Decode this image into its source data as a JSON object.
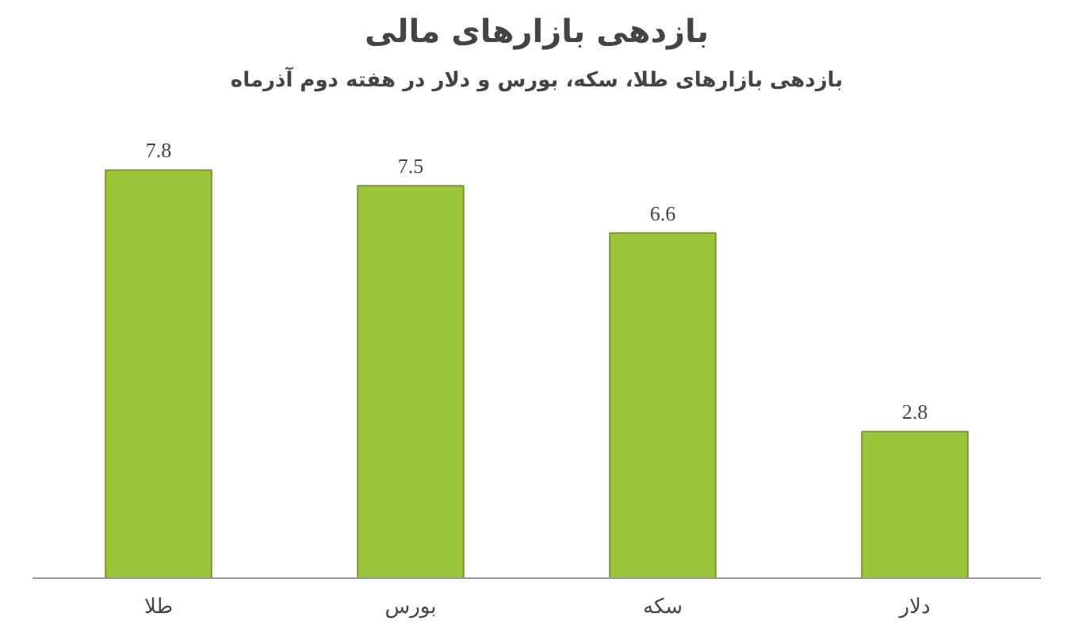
{
  "chart_data": {
    "type": "bar",
    "title": "بازدهی بازارهای مالی",
    "subtitle": "بازدهی بازارهای طلا، سکه، بورس و دلار در هفته دوم آذرماه",
    "categories": [
      "طلا",
      "بورس",
      "سکه",
      "دلار"
    ],
    "values": [
      7.8,
      7.5,
      6.6,
      2.8
    ],
    "color": "#9bc63a",
    "data_labels": true,
    "grid": false
  }
}
